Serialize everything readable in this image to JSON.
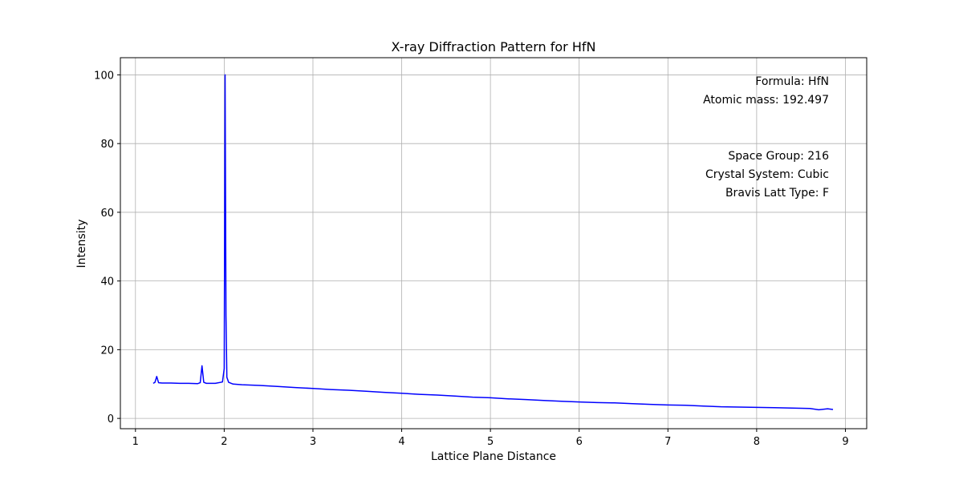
{
  "chart_data": {
    "type": "line",
    "title": "X-ray Diffraction Pattern for HfN",
    "xlabel": "Lattice Plane Distance",
    "ylabel": "Intensity",
    "xlim": [
      0.83,
      9.24
    ],
    "ylim": [
      -3,
      105
    ],
    "xticks": [
      1,
      2,
      3,
      4,
      5,
      6,
      7,
      8,
      9
    ],
    "yticks": [
      0,
      20,
      40,
      60,
      80,
      100
    ],
    "grid": true,
    "series": [
      {
        "color": "#0000ff",
        "x": [
          1.2,
          1.22,
          1.24,
          1.26,
          1.3,
          1.4,
          1.5,
          1.6,
          1.7,
          1.73,
          1.75,
          1.77,
          1.8,
          1.9,
          1.98,
          2.0,
          2.01,
          2.02,
          2.03,
          2.05,
          2.1,
          2.2,
          2.4,
          2.6,
          2.8,
          3.0,
          3.2,
          3.4,
          3.6,
          3.8,
          4.0,
          4.2,
          4.4,
          4.6,
          4.8,
          5.0,
          5.2,
          5.4,
          5.6,
          5.8,
          6.0,
          6.2,
          6.4,
          6.6,
          6.8,
          7.0,
          7.2,
          7.4,
          7.6,
          7.8,
          8.0,
          8.2,
          8.4,
          8.6,
          8.7,
          8.8,
          8.86
        ],
        "y": [
          10.2,
          10.5,
          12.2,
          10.4,
          10.3,
          10.3,
          10.2,
          10.2,
          10.1,
          10.4,
          15.3,
          10.5,
          10.2,
          10.2,
          10.6,
          14.5,
          100,
          30.0,
          12.0,
          10.5,
          10.0,
          9.8,
          9.6,
          9.3,
          9.0,
          8.7,
          8.4,
          8.2,
          7.9,
          7.6,
          7.3,
          7.0,
          6.8,
          6.5,
          6.2,
          6.0,
          5.7,
          5.5,
          5.2,
          5.0,
          4.8,
          4.6,
          4.5,
          4.3,
          4.1,
          3.9,
          3.8,
          3.6,
          3.4,
          3.3,
          3.2,
          3.1,
          3.0,
          2.9,
          2.5,
          2.8,
          2.6
        ]
      }
    ],
    "annotations": [
      "Formula: HfN",
      "Atomic mass: 192.497",
      "Space Group: 216",
      "Crystal System: Cubic",
      "Bravis Latt Type: F"
    ]
  }
}
